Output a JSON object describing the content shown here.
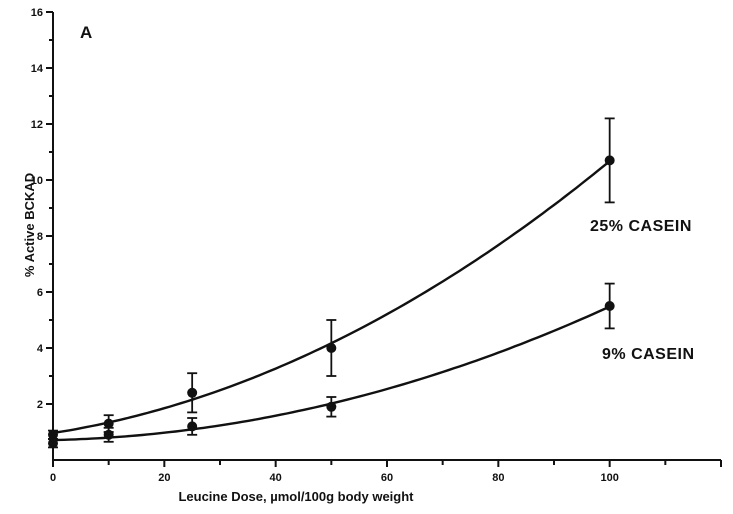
{
  "chart_data": {
    "type": "scatter",
    "panel_label": "A",
    "xlabel": "Leucine Dose, µmol/100g body weight",
    "ylabel": "% Active BCKAD",
    "xlim": [
      0,
      120
    ],
    "ylim": [
      0,
      16
    ],
    "x_ticks": [
      0,
      20,
      40,
      60,
      80,
      100
    ],
    "y_ticks": [
      2,
      4,
      6,
      8,
      10,
      12,
      14,
      16
    ],
    "grid": false,
    "series": [
      {
        "name": "25% CASEIN",
        "x": [
          0,
          10,
          25,
          50,
          100
        ],
        "y": [
          0.9,
          1.3,
          2.4,
          4.0,
          10.7
        ],
        "err": [
          0.15,
          0.3,
          0.7,
          1.0,
          1.5
        ],
        "fit": "curve"
      },
      {
        "name": "9% CASEIN",
        "x": [
          0,
          10,
          25,
          50,
          100
        ],
        "y": [
          0.6,
          0.9,
          1.2,
          1.9,
          5.5
        ],
        "err": [
          0.15,
          0.25,
          0.3,
          0.35,
          0.8
        ],
        "fit": "curve"
      }
    ]
  }
}
